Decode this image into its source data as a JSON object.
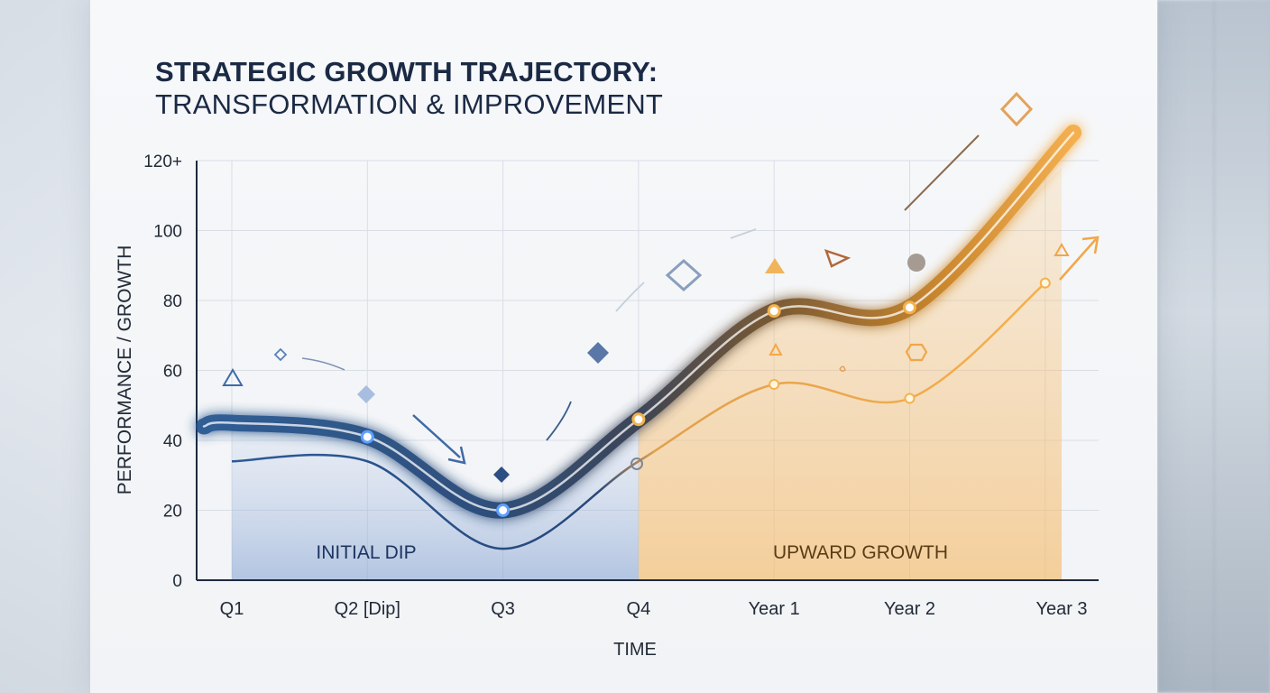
{
  "title": {
    "line1": "STRATEGIC GROWTH TRAJECTORY:",
    "line2": "TRANSFORMATION & IMPROVEMENT"
  },
  "colors": {
    "accent_blue": "#1f4f8c",
    "accent_orange": "#f0a236",
    "text": "#1b2a44"
  },
  "chart_data": {
    "type": "line",
    "title": "STRATEGIC GROWTH TRAJECTORY: TRANSFORMATION & IMPROVEMENT",
    "xlabel": "TIME",
    "ylabel": "PERFORMANCE / GROWTH",
    "categories": [
      "Q1",
      "Q2 [Dip]",
      "Q3",
      "Q4",
      "Year 1",
      "Year 2",
      "Year 3"
    ],
    "y_ticks": [
      "0",
      "20",
      "40",
      "60",
      "80",
      "100",
      "120+"
    ],
    "ylim": [
      0,
      120
    ],
    "grid": true,
    "series": [
      {
        "values": [
          45,
          41,
          20,
          46,
          77,
          78,
          128
        ]
      },
      {
        "values": [
          34,
          34,
          9,
          34,
          56,
          52,
          85
        ]
      }
    ],
    "regions": [
      {
        "label": "INITIAL DIP",
        "from": "Q1",
        "to": "Q4"
      },
      {
        "label": "UPWARD GROWTH",
        "from": "Q4",
        "to": "Year 3"
      }
    ]
  }
}
